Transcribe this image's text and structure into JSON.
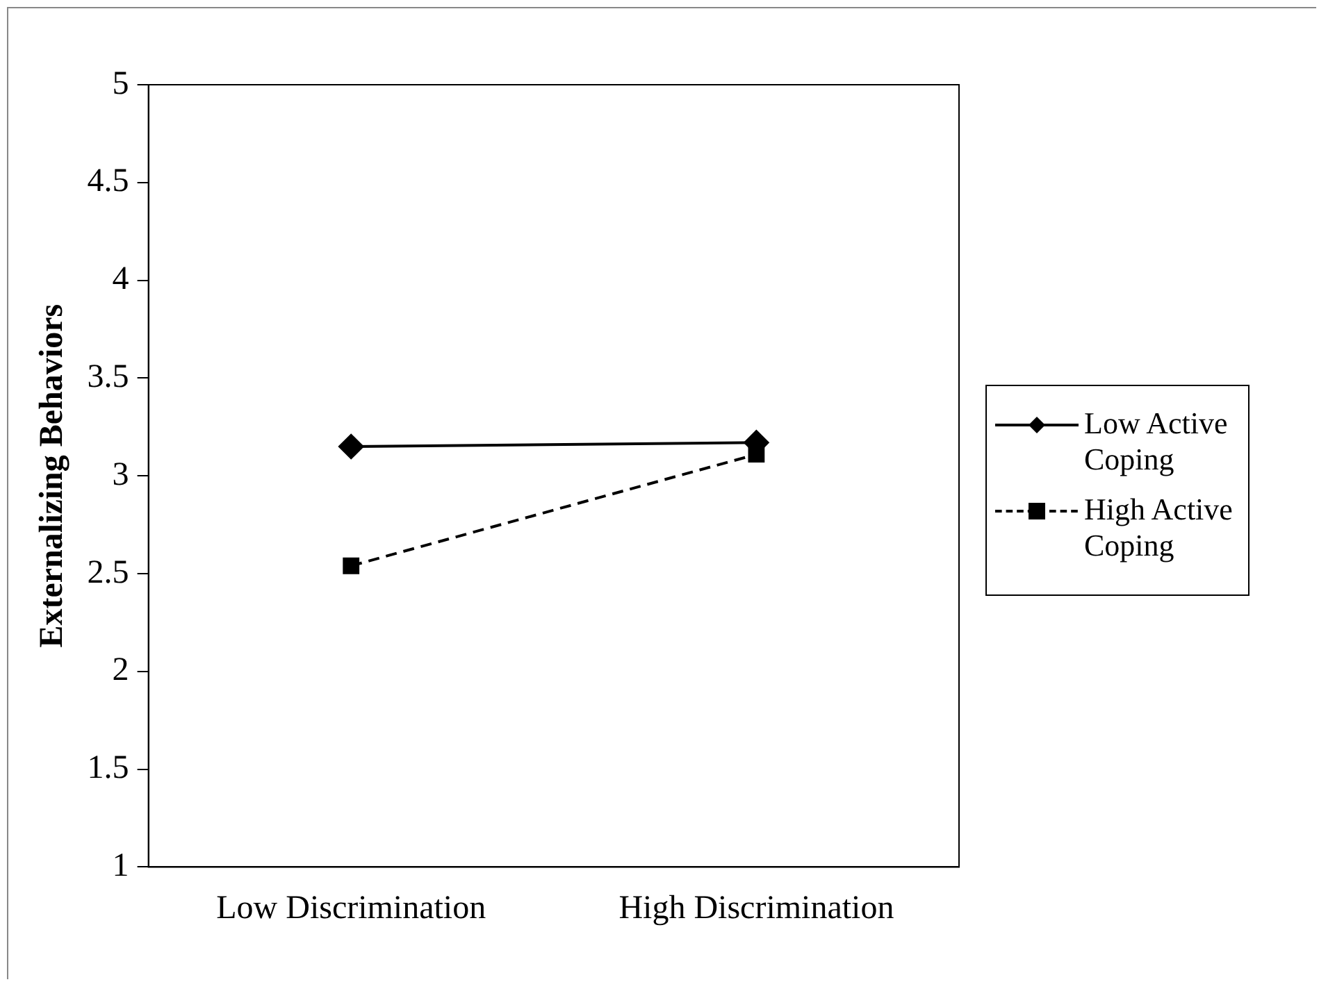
{
  "chart_data": {
    "type": "line",
    "ylabel": "Externalizing Behaviors",
    "categories": [
      "Low Discrimination",
      "High Discrimination"
    ],
    "series": [
      {
        "name": "Low Active Coping",
        "color": "#000000",
        "values": [
          3.15,
          3.17
        ],
        "marker": "diamond",
        "line_style": "solid"
      },
      {
        "name": "High Active Coping",
        "color": "#000000",
        "values": [
          2.54,
          3.11
        ],
        "marker": "square",
        "line_style": "dashed"
      }
    ],
    "ylim": [
      1,
      5
    ],
    "yticks": [
      1,
      1.5,
      2,
      2.5,
      3,
      3.5,
      4,
      4.5,
      5
    ],
    "grid": false,
    "legend": "right"
  }
}
